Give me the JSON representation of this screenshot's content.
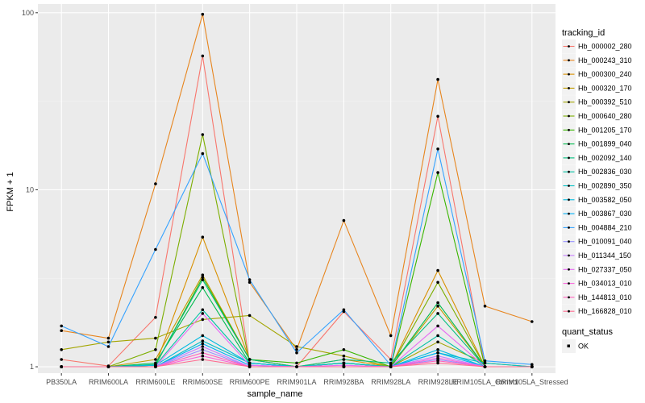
{
  "chart_data": {
    "type": "line",
    "title": "",
    "xlabel": "sample_name",
    "ylabel": "FPKM + 1",
    "y_scale": "log10",
    "ylim": [
      0.92,
      112
    ],
    "y_ticks": [
      1,
      10,
      100
    ],
    "y_tick_labels": [
      "1",
      "10",
      "100"
    ],
    "grid": true,
    "legend_position": "right",
    "categories": [
      "PB350LA",
      "RRIM600LA",
      "RRIM600LE",
      "RRIM600SE",
      "RRIM600PE",
      "RRIM901LA",
      "RRIM928BA",
      "RRIM928LA",
      "RRIM928LE",
      "RRIM105LA_Control",
      "RRIM105LA_Stressed"
    ],
    "legend_title": "tracking_id",
    "series": [
      {
        "name": "Hb_000002_280",
        "color": "#F8766D",
        "values": [
          1.1,
          1.01,
          1.9,
          57.0,
          1.05,
          1.0,
          2.05,
          1.1,
          26.0,
          1.0,
          1.0
        ]
      },
      {
        "name": "Hb_000243_310",
        "color": "#E7851E",
        "values": [
          1.6,
          1.45,
          10.8,
          98.0,
          3.0,
          1.25,
          6.7,
          1.5,
          42.0,
          2.2,
          1.8
        ]
      },
      {
        "name": "Hb_000300_240",
        "color": "#D89000",
        "values": [
          1.0,
          1.0,
          1.02,
          5.4,
          1.1,
          1.0,
          1.1,
          1.0,
          3.5,
          1.0,
          1.0
        ]
      },
      {
        "name": "Hb_000320_170",
        "color": "#C09B00",
        "values": [
          1.0,
          1.0,
          1.1,
          3.3,
          1.1,
          1.0,
          1.05,
          1.0,
          2.2,
          1.0,
          1.0
        ]
      },
      {
        "name": "Hb_000392_510",
        "color": "#A3A500",
        "values": [
          1.25,
          1.38,
          1.45,
          1.85,
          1.95,
          1.3,
          1.15,
          1.0,
          1.38,
          1.05,
          1.0
        ]
      },
      {
        "name": "Hb_000640_280",
        "color": "#7CAE00",
        "values": [
          1.0,
          1.0,
          1.25,
          20.5,
          1.05,
          1.0,
          1.05,
          1.0,
          3.0,
          1.0,
          1.0
        ]
      },
      {
        "name": "Hb_001205_170",
        "color": "#39B600",
        "values": [
          1.0,
          1.0,
          1.02,
          3.2,
          1.1,
          1.05,
          1.25,
          1.0,
          12.5,
          1.0,
          1.0
        ]
      },
      {
        "name": "Hb_001899_040",
        "color": "#00BB4E",
        "values": [
          1.0,
          1.0,
          1.05,
          2.8,
          1.05,
          1.0,
          1.05,
          1.0,
          2.3,
          1.0,
          1.0
        ]
      },
      {
        "name": "Hb_002092_140",
        "color": "#00BF7D",
        "values": [
          1.0,
          1.0,
          1.03,
          3.1,
          1.1,
          1.0,
          1.1,
          1.05,
          2.0,
          1.0,
          1.0
        ]
      },
      {
        "name": "Hb_002836_030",
        "color": "#00C1A3",
        "values": [
          1.0,
          1.0,
          1.02,
          2.1,
          1.05,
          1.0,
          1.05,
          1.0,
          1.5,
          1.0,
          1.0
        ]
      },
      {
        "name": "Hb_002890_350",
        "color": "#00BFC4",
        "values": [
          1.0,
          1.0,
          1.0,
          1.4,
          1.05,
          1.0,
          1.05,
          1.0,
          1.2,
          1.05,
          1.0
        ]
      },
      {
        "name": "Hb_003582_050",
        "color": "#00BAE0",
        "values": [
          1.0,
          1.0,
          1.02,
          1.5,
          1.05,
          1.0,
          1.0,
          1.0,
          1.25,
          1.0,
          1.0
        ]
      },
      {
        "name": "Hb_003867_030",
        "color": "#00B0F6",
        "values": [
          1.0,
          1.0,
          1.0,
          1.35,
          1.02,
          1.0,
          1.0,
          1.0,
          1.2,
          1.0,
          1.0
        ]
      },
      {
        "name": "Hb_004884_210",
        "color": "#35A2FF",
        "values": [
          1.7,
          1.3,
          4.6,
          16.0,
          3.1,
          1.2,
          2.1,
          1.02,
          17.0,
          1.08,
          1.03
        ]
      },
      {
        "name": "Hb_010091_040",
        "color": "#9590FF",
        "values": [
          1.0,
          1.0,
          1.0,
          1.25,
          1.0,
          1.0,
          1.0,
          1.0,
          1.1,
          1.0,
          1.0
        ]
      },
      {
        "name": "Hb_011344_150",
        "color": "#C77CFF",
        "values": [
          1.0,
          1.0,
          1.0,
          1.3,
          1.0,
          1.0,
          1.0,
          1.0,
          1.15,
          1.0,
          1.0
        ]
      },
      {
        "name": "Hb_027337_050",
        "color": "#E76BF3",
        "values": [
          1.0,
          1.0,
          1.0,
          2.0,
          1.02,
          1.0,
          1.02,
          1.0,
          1.7,
          1.0,
          1.0
        ]
      },
      {
        "name": "Hb_034013_010",
        "color": "#FA62DB",
        "values": [
          1.0,
          1.0,
          1.0,
          1.15,
          1.0,
          1.0,
          1.0,
          1.0,
          1.12,
          1.0,
          1.0
        ]
      },
      {
        "name": "Hb_144813_010",
        "color": "#FF62BC",
        "values": [
          1.0,
          1.0,
          1.0,
          1.2,
          1.0,
          1.0,
          1.0,
          1.0,
          1.08,
          1.0,
          1.0
        ]
      },
      {
        "name": "Hb_166828_010",
        "color": "#FF6C91",
        "values": [
          1.0,
          1.0,
          1.0,
          1.1,
          1.0,
          1.0,
          1.0,
          1.0,
          1.05,
          1.0,
          1.0
        ]
      }
    ],
    "shape_legend": {
      "title": "quant_status",
      "items": [
        "OK"
      ]
    },
    "colors": {
      "panel": "#EBEBEB",
      "grid_major": "#FFFFFF",
      "grid_minor": "#F5F5F5",
      "point": "#000000"
    }
  }
}
